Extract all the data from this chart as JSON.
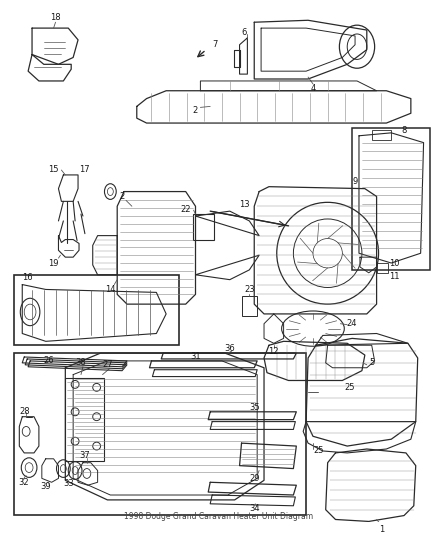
{
  "title": "1998 Dodge Grand Caravan Heater Unit Diagram",
  "bg": "#ffffff",
  "lc": "#2a2a2a",
  "tc": "#1a1a1a",
  "fig_w": 4.38,
  "fig_h": 5.33,
  "dpi": 100,
  "label_fs": 6.0,
  "gray": "#555555",
  "lgray": "#888888"
}
